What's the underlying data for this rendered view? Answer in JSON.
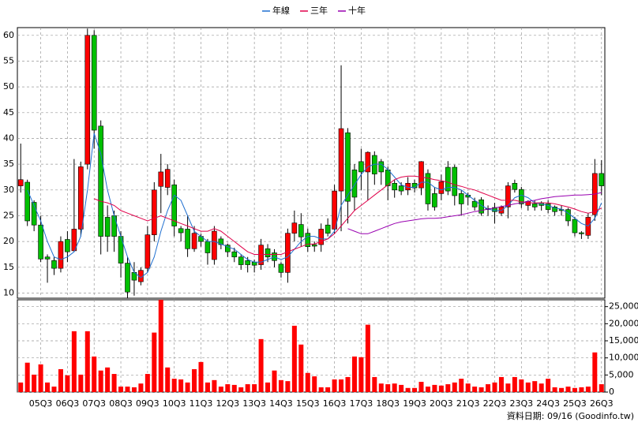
{
  "chart_data": {
    "type": "candlestick",
    "categories": [
      null,
      null,
      null,
      "05Q3",
      null,
      null,
      null,
      "06Q3",
      null,
      null,
      null,
      "07Q3",
      null,
      null,
      null,
      "08Q3",
      null,
      null,
      null,
      "09Q3",
      null,
      null,
      null,
      "10Q3",
      null,
      null,
      null,
      "11Q3",
      null,
      null,
      null,
      "12Q3",
      null,
      null,
      null,
      "13Q3",
      null,
      null,
      null,
      "14Q3",
      null,
      null,
      null,
      "15Q3",
      null,
      null,
      null,
      "16Q3",
      null,
      null,
      null,
      "17Q3",
      null,
      null,
      null,
      "18Q3",
      null,
      null,
      null,
      "19Q3",
      null,
      null,
      null,
      "20Q3",
      null,
      null,
      null,
      "21Q3",
      null,
      null,
      null,
      "22Q3",
      null,
      null,
      null,
      "23Q3",
      null,
      null,
      null,
      "24Q3",
      null,
      null,
      null,
      "25Q3",
      null,
      null,
      null,
      "26Q3"
    ],
    "open": [
      30.8,
      31.5,
      27.6,
      23.2,
      17,
      16.3,
      14.8,
      20.4,
      18.2,
      22.4,
      35,
      60,
      42.4,
      24.7,
      25,
      21,
      15.8,
      14,
      12.2,
      14.8,
      21.3,
      30.7,
      30.5,
      31,
      22.5,
      22.4,
      18.6,
      21,
      20,
      16.5,
      20.5,
      19.3,
      18,
      17,
      16.3,
      16,
      15.5,
      18.6,
      17.8,
      15.6,
      14,
      21.6,
      23.3,
      21.6,
      19.4,
      19.4,
      23.2,
      22.4,
      29.8,
      41.1,
      33.9,
      35.5,
      33.5,
      36.7,
      35.5,
      33.9,
      31.3,
      30.8,
      30,
      31.3,
      30.4,
      33.2,
      29.3,
      29.3,
      34.4,
      34.4,
      29.3,
      29,
      27.8,
      28.1,
      26.4,
      26.6,
      25.5,
      26.7,
      31.3,
      30.1,
      27,
      27.3,
      27.5,
      27.3,
      26.7,
      26.2,
      26.2,
      24.3,
      21.7,
      21.2,
      25.2,
      33.2
    ],
    "high": [
      39,
      32,
      28,
      25,
      17.5,
      17,
      21,
      22,
      36,
      35.5,
      61.3,
      61,
      43.5,
      27,
      26,
      22,
      17,
      16,
      15,
      23,
      31.5,
      37,
      35,
      32,
      23,
      25,
      23,
      21.5,
      20.5,
      23,
      21,
      19.6,
      18.8,
      17.5,
      17,
      16.5,
      20.5,
      19.5,
      18.5,
      16,
      22.5,
      26,
      25.5,
      22.5,
      20,
      23.5,
      24.5,
      31,
      54.2,
      42,
      35,
      38,
      37.5,
      37.5,
      36,
      34.5,
      32,
      31.5,
      32.5,
      32,
      35.6,
      34,
      30.5,
      33,
      35.6,
      34.9,
      30,
      29.5,
      28.5,
      28.6,
      27,
      27.5,
      27,
      31.5,
      32,
      30.6,
      28,
      28,
      27.8,
      28,
      27,
      27,
      26.5,
      24.8,
      22,
      25.5,
      36,
      35.8
    ],
    "low": [
      29.5,
      23,
      22,
      16,
      12,
      13.5,
      14,
      16,
      18,
      21,
      34,
      38,
      17.5,
      18,
      18,
      13,
      9,
      9.5,
      11.5,
      14,
      20,
      25.5,
      29,
      21,
      20,
      17,
      18,
      19,
      15.5,
      15.5,
      18.5,
      17,
      16,
      14.5,
      14,
      14,
      14.5,
      16,
      15,
      13,
      12,
      20,
      19,
      18,
      18,
      18,
      21,
      21.5,
      22,
      23.5,
      26,
      30,
      28,
      31,
      31,
      28,
      28.5,
      29,
      29,
      29.5,
      29,
      26,
      26,
      28,
      29,
      27,
      25,
      27,
      26,
      25,
      25,
      23.5,
      25,
      24.5,
      29.5,
      26.5,
      26,
      26,
      26,
      25.5,
      25,
      25,
      23,
      21,
      20.5,
      20.5,
      24,
      29
    ],
    "close": [
      32,
      24,
      23.2,
      16.6,
      16.6,
      14.8,
      20,
      18,
      22.4,
      34.5,
      60,
      41.6,
      21,
      21,
      21,
      15.8,
      10.2,
      12.5,
      14.4,
      21.3,
      30,
      33.5,
      34,
      23,
      21.7,
      18.6,
      21.6,
      20,
      17.8,
      22,
      19.4,
      18,
      17,
      15.5,
      15.5,
      15.4,
      19.3,
      17,
      16.3,
      14,
      21.6,
      23.6,
      20.9,
      19,
      19.1,
      22.4,
      21.6,
      29.8,
      41.9,
      27.8,
      28.6,
      33.5,
      37.3,
      33.1,
      33.5,
      30.8,
      30,
      29.8,
      31.3,
      30.4,
      35.5,
      27.3,
      26.7,
      31.6,
      29.8,
      28.9,
      27.3,
      28.6,
      26.7,
      25.5,
      26.2,
      25.8,
      26.7,
      30.8,
      30.1,
      27.3,
      27.8,
      26.7,
      27,
      26.2,
      25.8,
      26,
      24,
      21.7,
      21.5,
      24.7,
      33.2,
      30.8
    ],
    "up_color": "#ff0000",
    "down_color": "#00c000",
    "ylim": [
      9,
      61.5
    ],
    "yticks": [
      10,
      15,
      20,
      25,
      30,
      35,
      40,
      45,
      50,
      55,
      60
    ],
    "grid": true,
    "legend": "top",
    "lines": [
      {
        "name": "年線",
        "color": "#1f6fd0",
        "values": [
          null,
          30,
          27,
          24,
          20,
          17,
          16.5,
          17,
          18,
          21,
          30,
          41,
          37,
          30,
          25,
          21,
          17,
          14,
          13,
          14,
          17,
          22,
          26,
          29,
          28,
          25,
          22,
          21,
          20,
          20,
          19.5,
          19,
          18.5,
          17.5,
          16.5,
          16,
          16,
          16.5,
          17,
          16.5,
          17,
          18.5,
          20,
          21,
          21,
          20.5,
          20.5,
          22,
          27,
          29,
          31,
          33,
          34.5,
          35,
          35,
          34,
          32.5,
          31,
          30.5,
          30.5,
          31.5,
          31.5,
          30.5,
          30,
          30.5,
          30.5,
          30,
          29,
          28,
          27,
          26.3,
          26,
          26,
          27,
          28.5,
          29,
          28.5,
          27.5,
          27.3,
          27,
          26.5,
          26.3,
          25.5,
          24.5,
          23.5,
          23,
          24.5,
          27.5
        ]
      },
      {
        "name": "三年",
        "color": "#e0004a",
        "values": [
          null,
          null,
          null,
          null,
          null,
          null,
          null,
          null,
          null,
          null,
          null,
          28.3,
          27.8,
          27.5,
          27,
          26,
          25.5,
          25,
          24.5,
          24,
          24.5,
          25,
          24.5,
          24,
          23.5,
          23,
          22.5,
          22,
          22,
          22.5,
          22,
          21,
          20,
          19,
          18,
          17.5,
          17.5,
          17.5,
          17.5,
          17.5,
          18,
          18.5,
          19,
          19.5,
          19.5,
          20,
          20.5,
          21.5,
          23,
          24.5,
          26,
          27,
          28,
          29,
          30,
          31,
          32,
          32.5,
          32.7,
          32.7,
          32.5,
          32.3,
          32,
          31.8,
          31.5,
          31,
          30.7,
          30.3,
          30,
          29.5,
          29,
          28.5,
          28,
          28,
          28,
          27.7,
          27.5,
          27.5,
          27.5,
          27.5,
          27.3,
          27,
          26.7,
          26.3,
          25.8,
          25.5,
          25.8,
          26.5
        ]
      },
      {
        "name": "十年",
        "color": "#9900b0",
        "values": [
          null,
          null,
          null,
          null,
          null,
          null,
          null,
          null,
          null,
          null,
          null,
          null,
          null,
          null,
          null,
          null,
          null,
          null,
          null,
          null,
          null,
          null,
          null,
          null,
          null,
          null,
          null,
          null,
          null,
          null,
          null,
          null,
          null,
          null,
          null,
          null,
          null,
          null,
          null,
          null,
          null,
          null,
          null,
          null,
          null,
          null,
          null,
          null,
          null,
          22.5,
          22,
          21.5,
          21.5,
          22,
          22.5,
          23,
          23.5,
          23.8,
          24,
          24.2,
          24.4,
          24.5,
          24.5,
          24.6,
          24.8,
          25,
          25.2,
          25.5,
          25.8,
          26,
          26.3,
          26.5,
          26.8,
          27,
          27.3,
          27.5,
          27.8,
          28,
          28.3,
          28.5,
          28.7,
          28.8,
          28.9,
          29,
          29,
          29.1,
          29.2,
          29.5
        ]
      }
    ],
    "volume": {
      "color": "#ff0000",
      "values": [
        2800,
        8600,
        5100,
        8100,
        2800,
        1600,
        6700,
        4900,
        17800,
        5100,
        17800,
        10400,
        6300,
        7200,
        5300,
        1600,
        1600,
        1400,
        2500,
        5300,
        17400,
        27000,
        7200,
        3900,
        3700,
        2800,
        6700,
        8800,
        2800,
        3500,
        1600,
        2300,
        2100,
        1400,
        2300,
        2300,
        15500,
        2800,
        6300,
        3500,
        3200,
        19400,
        13900,
        5600,
        4600,
        1400,
        1400,
        3700,
        3700,
        4400,
        10400,
        10200,
        19700,
        4400,
        2500,
        2300,
        2500,
        2100,
        1200,
        1200,
        3000,
        1600,
        2100,
        1900,
        2300,
        2800,
        3900,
        2500,
        1600,
        1400,
        2300,
        2800,
        4400,
        2500,
        4400,
        3700,
        2800,
        3200,
        2500,
        3900,
        1400,
        1200,
        1600,
        1200,
        1400,
        1600,
        11600,
        2300
      ],
      "ylim": [
        0,
        27000
      ],
      "yticks": [
        0,
        {
          "value": 5000,
          "label": "5,000"
        },
        {
          "value": 10000,
          "label": "10,000"
        },
        {
          "value": 15000,
          "label": "15,000"
        },
        {
          "value": 20000,
          "label": "20,000"
        },
        {
          "value": 25000,
          "label": "25,000"
        }
      ]
    },
    "footnote": "資料日期: 09/16 (Goodinfo.tw)"
  }
}
